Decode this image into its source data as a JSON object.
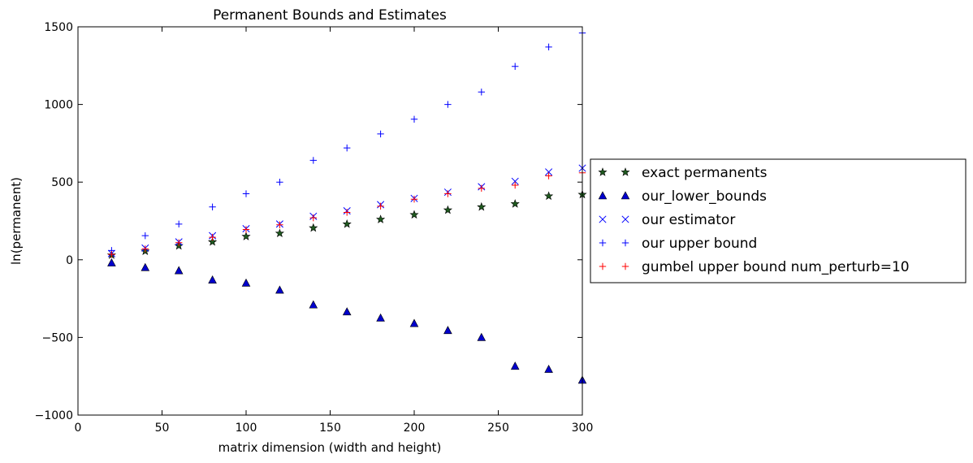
{
  "chart_data": {
    "type": "scatter",
    "title": "Permanent Bounds and Estimates",
    "xlabel": "matrix dimension (width and height)",
    "ylabel": "ln(permanent)",
    "xlim": [
      0,
      300
    ],
    "ylim": [
      -1000,
      1500
    ],
    "xticks": [
      0,
      50,
      100,
      150,
      200,
      250,
      300
    ],
    "yticks": [
      -1000,
      -500,
      0,
      500,
      1000,
      1500
    ],
    "xtick_labels": [
      "0",
      "50",
      "100",
      "150",
      "200",
      "250",
      "300"
    ],
    "ytick_labels": [
      "−1000",
      "−500",
      "0",
      "500",
      "1000",
      "1500"
    ],
    "grid": false,
    "legend_placement": "outside-right",
    "x": [
      20,
      40,
      60,
      80,
      100,
      120,
      140,
      160,
      180,
      200,
      220,
      240,
      260,
      280,
      300
    ],
    "series": [
      {
        "name": "exact permanents",
        "marker": "star",
        "color": "#1f5a1f",
        "values": [
          30,
          55,
          90,
          115,
          150,
          170,
          205,
          230,
          260,
          290,
          320,
          340,
          360,
          410,
          420
        ]
      },
      {
        "name": "our_lower_bounds",
        "marker": "triangle",
        "color": "#0000cc",
        "values": [
          -20,
          -50,
          -70,
          -130,
          -150,
          -195,
          -290,
          -335,
          -375,
          -410,
          -455,
          -500,
          -685,
          -705,
          -775
        ]
      },
      {
        "name": "our estimator",
        "marker": "x",
        "color": "#0000ff",
        "values": [
          40,
          75,
          115,
          155,
          200,
          230,
          280,
          315,
          355,
          395,
          435,
          470,
          505,
          565,
          590
        ]
      },
      {
        "name": "our upper bound",
        "marker": "plus",
        "color": "#0000ff",
        "values": [
          60,
          155,
          230,
          340,
          425,
          500,
          640,
          720,
          810,
          905,
          1000,
          1080,
          1245,
          1370,
          1460
        ]
      },
      {
        "name": "gumbel upper bound num_perturb=10",
        "marker": "plus",
        "color": "#ff0000",
        "values": [
          35,
          70,
          110,
          145,
          195,
          225,
          270,
          305,
          345,
          390,
          425,
          460,
          480,
          540,
          560
        ]
      }
    ]
  }
}
